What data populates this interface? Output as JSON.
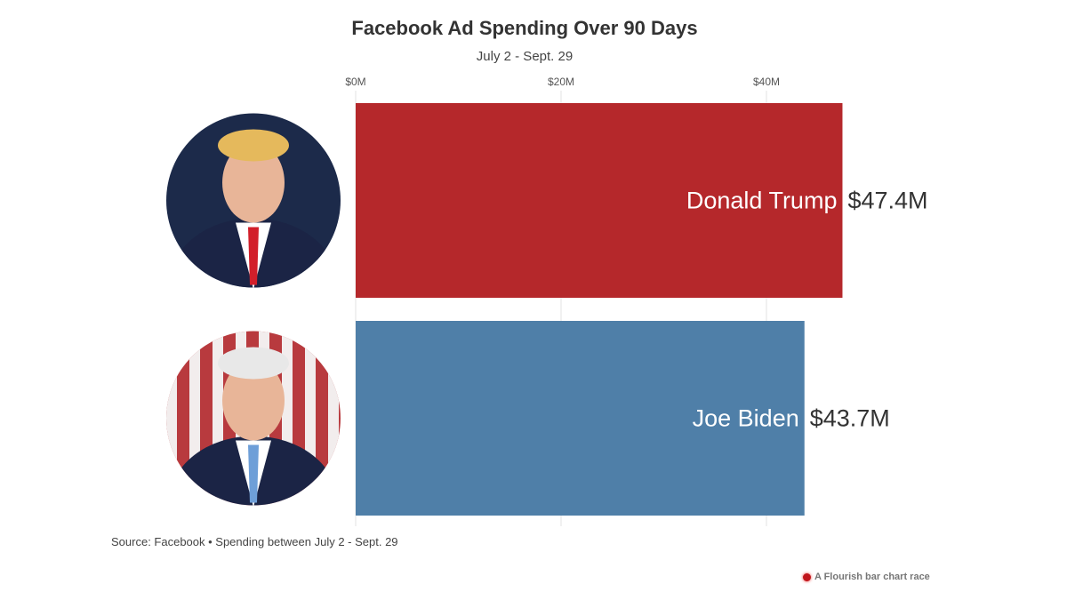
{
  "chart_data": {
    "type": "bar",
    "orientation": "horizontal",
    "title": "Facebook Ad Spending Over 90 Days",
    "subtitle": "July 2 - Sept. 29",
    "categories": [
      "Donald Trump",
      "Joe Biden"
    ],
    "values": [
      47.4,
      43.7
    ],
    "value_labels": [
      "$47.4M",
      "$43.7M"
    ],
    "colors": [
      "#b5282b",
      "#4f7fa8"
    ],
    "xlim": [
      0,
      50
    ],
    "ticks": [
      0,
      20,
      40
    ],
    "tick_labels": [
      "$0M",
      "$20M",
      "$40M"
    ],
    "grid": true
  },
  "footer": {
    "source": "Source: Facebook • Spending between July 2 - Sept. 29",
    "credit": "A Flourish bar chart race"
  }
}
